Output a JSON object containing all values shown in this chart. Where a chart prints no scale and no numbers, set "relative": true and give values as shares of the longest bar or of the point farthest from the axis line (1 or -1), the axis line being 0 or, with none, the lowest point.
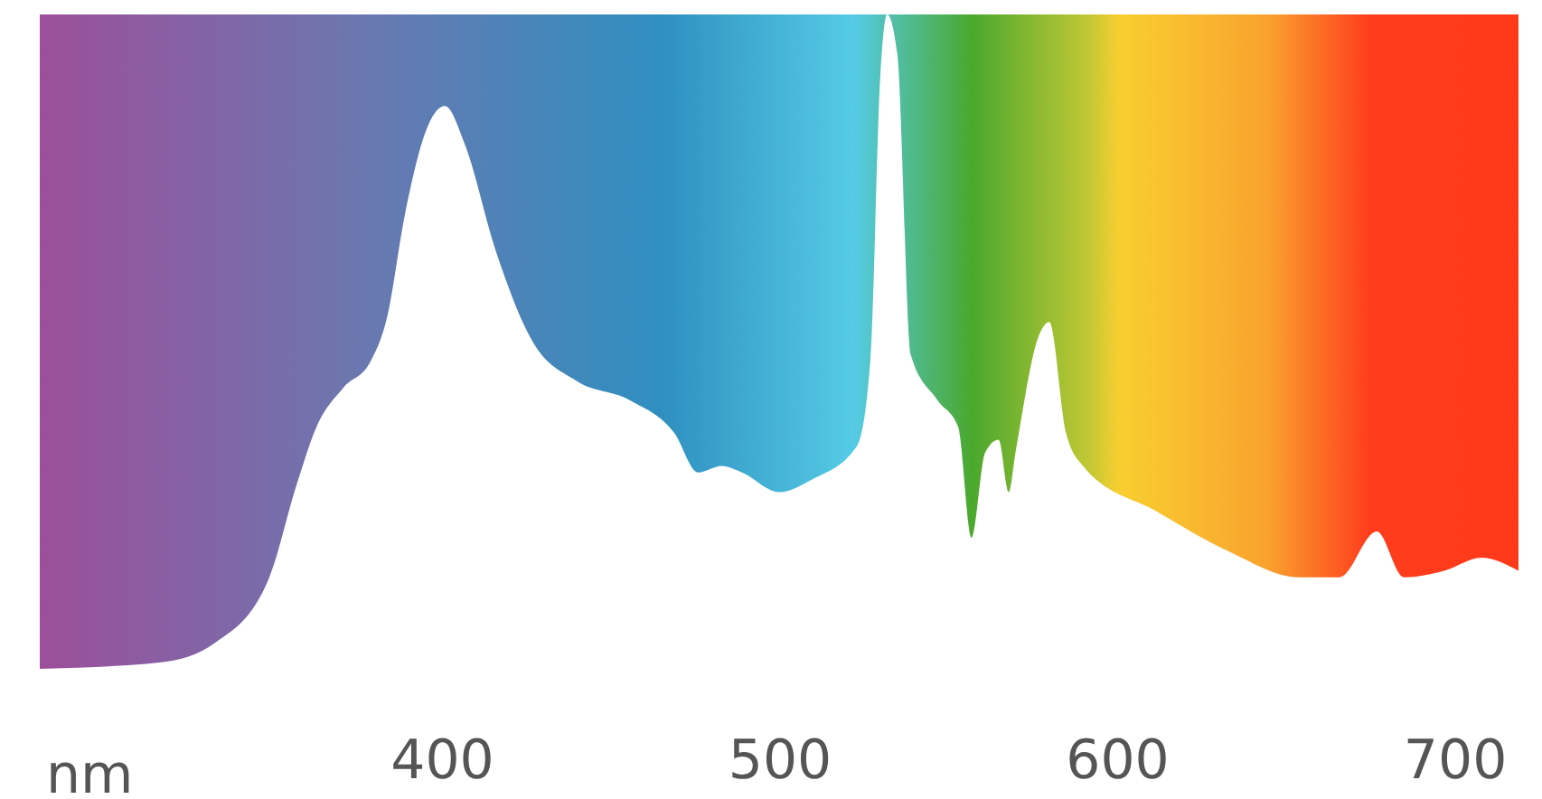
{
  "chart_data": {
    "type": "area",
    "xlabel": "nm",
    "relative": true,
    "xlim": [
      281,
      719
    ],
    "xticks": [
      400,
      500,
      600,
      700
    ],
    "x": [
      281,
      317,
      333,
      349,
      357,
      363,
      371,
      379,
      384,
      389,
      396,
      401,
      407,
      416,
      427,
      440,
      456,
      469,
      476,
      483,
      489,
      500,
      510,
      523,
      527,
      530,
      532,
      535,
      539,
      547,
      553,
      557,
      561,
      565,
      568,
      570,
      577,
      580,
      585,
      590,
      612,
      633,
      654,
      666,
      677,
      685,
      697,
      708,
      719
    ],
    "series": [
      {
        "color": "#ffffff",
        "values": [
          0,
          0.01,
          0.04,
          0.14,
          0.28,
          0.37,
          0.43,
          0.47,
          0.54,
          0.69,
          0.83,
          0.86,
          0.8,
          0.64,
          0.5,
          0.44,
          0.41,
          0.36,
          0.3,
          0.31,
          0.3,
          0.27,
          0.29,
          0.34,
          0.47,
          0.91,
          1,
          0.94,
          0.48,
          0.41,
          0.37,
          0.2,
          0.33,
          0.35,
          0.27,
          0.33,
          0.51,
          0.53,
          0.36,
          0.31,
          0.24,
          0.18,
          0.14,
          0.14,
          0.21,
          0.14,
          0.15,
          0.17,
          0.15
        ]
      }
    ],
    "grid": false
  }
}
